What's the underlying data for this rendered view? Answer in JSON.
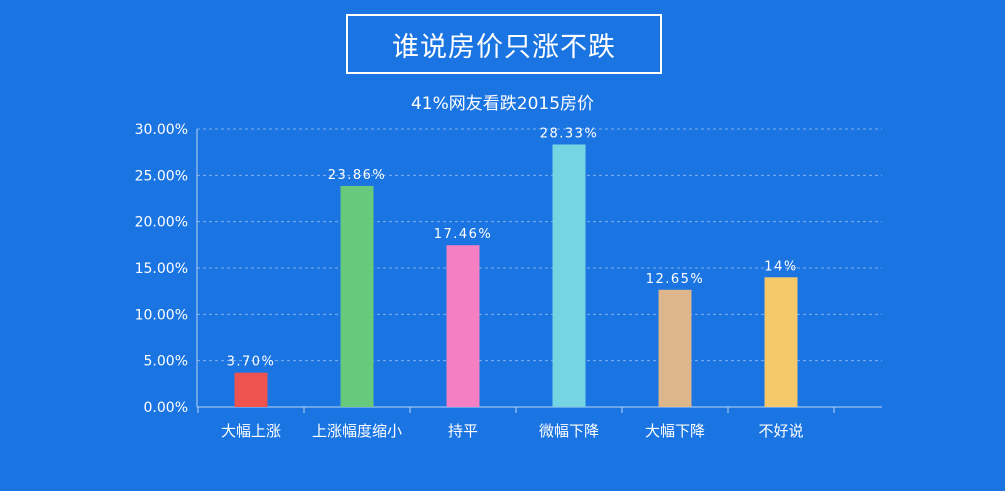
{
  "header": {
    "title": "谁说房价只涨不跌",
    "subtitle": "41%网友看跌2015房价"
  },
  "colors": {
    "background": "#1a74e2",
    "axis": "#b9d6f7",
    "gridline": "#7fb2ee",
    "text": "#ffffff"
  },
  "chart_data": {
    "type": "bar",
    "title": "41%网友看跌2015房价",
    "categories": [
      "大幅上涨",
      "上涨幅度缩小",
      "持平",
      "微幅下降",
      "大幅下降",
      "不好说"
    ],
    "values": [
      3.7,
      23.86,
      17.46,
      28.33,
      12.65,
      14
    ],
    "value_labels": [
      "3.70%",
      "23.86%",
      "17.46%",
      "28.33%",
      "12.65%",
      "14%"
    ],
    "bar_colors": [
      "#ef5350",
      "#66c97b",
      "#f57fc3",
      "#76d5e3",
      "#deb68c",
      "#f5c96a"
    ],
    "ylim": [
      0,
      30
    ],
    "y_ticks": [
      0,
      5,
      10,
      15,
      20,
      25,
      30
    ],
    "y_tick_labels": [
      "0.00%",
      "5.00%",
      "10.00%",
      "15.00%",
      "20.00%",
      "25.00%",
      "30.00%"
    ],
    "grid": true,
    "xlabel": "",
    "ylabel": ""
  }
}
